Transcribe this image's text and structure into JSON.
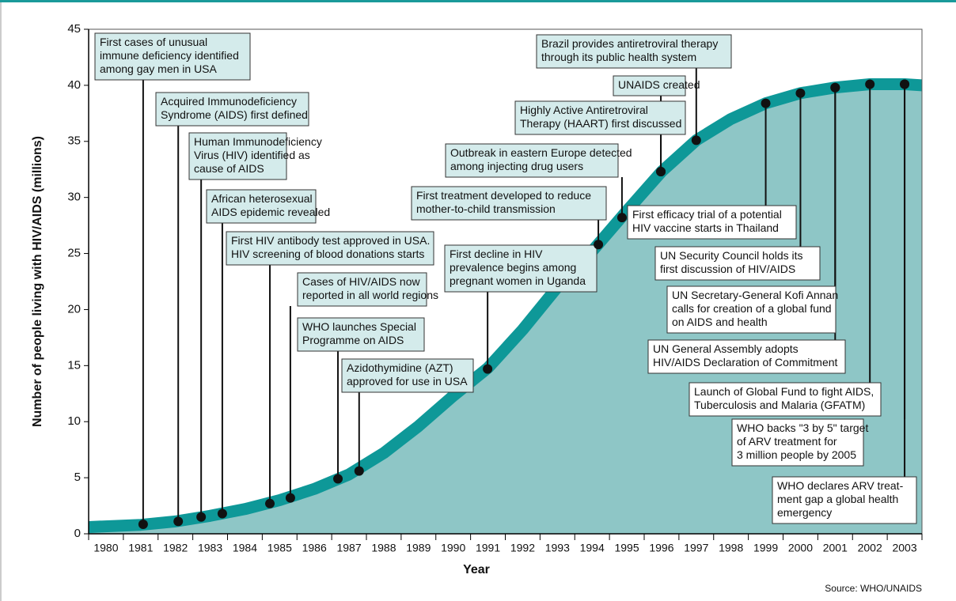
{
  "chart_data": {
    "type": "line",
    "y_label": "Number of people living with HIV/AIDS (millions)",
    "x_label": "Year",
    "source": "Source: WHO/UNAIDS",
    "color": "#0e9898",
    "fill_color": "#8ec6c6",
    "xlim": [
      1979.5,
      2003.5
    ],
    "xticks": [
      1980,
      1981,
      1982,
      1983,
      1984,
      1985,
      1986,
      1987,
      1988,
      1989,
      1990,
      1991,
      1992,
      1993,
      1994,
      1995,
      1996,
      1997,
      1998,
      1999,
      2000,
      2001,
      2002,
      2003
    ],
    "ylim": [
      0,
      45
    ],
    "yticks": [
      0,
      5,
      10,
      15,
      20,
      25,
      30,
      35,
      40,
      45
    ],
    "x": [
      1979.5,
      1981,
      1982,
      1983,
      1984,
      1985,
      1986,
      1987,
      1988,
      1989,
      1990,
      1991,
      1992,
      1993,
      1994,
      1995,
      1996,
      1997,
      1998,
      1999,
      2000,
      2001,
      2002,
      2003,
      2003.5
    ],
    "values": [
      0.6,
      0.8,
      1.1,
      1.6,
      2.2,
      3.0,
      4.0,
      5.3,
      7.2,
      9.6,
      12.3,
      14.8,
      18.2,
      22.0,
      25.2,
      28.8,
      32.3,
      35.1,
      37.0,
      38.4,
      39.3,
      39.8,
      40.1,
      40.1,
      40.0
    ],
    "annotations": [
      {
        "lines": [
          "First cases of unusual",
          "immune deficiency identified",
          "among gay men in USA"
        ],
        "x": 1981.07,
        "y": 0.85
      },
      {
        "lines": [
          "Acquired Immunodeficiency",
          "Syndrome (AIDS) first defined"
        ],
        "x": 1982.08,
        "y": 1.1
      },
      {
        "lines": [
          "Human Immunodeficiency",
          "Virus (HIV) identified as",
          "cause of AIDS"
        ],
        "x": 1982.74,
        "y": 1.5
      },
      {
        "lines": [
          "African heterosexual",
          "AIDS epidemic revealed"
        ],
        "x": 1983.35,
        "y": 1.8
      },
      {
        "lines": [
          "First HIV antibody test approved in USA.",
          "HIV screening of blood donations starts"
        ],
        "x": 1984.72,
        "y": 2.7
      },
      {
        "lines": [
          "Cases of HIV/AIDS now",
          "reported in all world regions"
        ],
        "x": 1985.31,
        "y": 3.2
      },
      {
        "lines": [
          "WHO launches Special",
          "Programme on AIDS"
        ],
        "x": 1986.68,
        "y": 4.9
      },
      {
        "lines": [
          "Azidothymidine (AZT)",
          "approved for use in USA"
        ],
        "x": 1987.29,
        "y": 5.6
      },
      {
        "lines": [
          "First decline in HIV",
          "prevalence begins among",
          "pregnant women in Uganda"
        ],
        "x": 1990.99,
        "y": 14.7
      },
      {
        "lines": [
          "First treatment developed to reduce",
          "mother-to-child transmission"
        ],
        "x": 1994.18,
        "y": 25.8
      },
      {
        "lines": [
          "Outbreak in eastern Europe detected",
          "among injecting drug users"
        ],
        "x": 1994.86,
        "y": 28.2
      },
      {
        "lines": [
          "Highly Active Antiretroviral",
          "Therapy (HAART) first discussed"
        ],
        "x": 1995.98,
        "y": 32.3
      },
      {
        "lines": [
          "UNAIDS created"
        ],
        "x": 1995.98,
        "y": 32.3
      },
      {
        "lines": [
          "Brazil provides antiretroviral therapy",
          "through its public health system"
        ],
        "x": 1997.0,
        "y": 35.1
      },
      {
        "lines": [
          "First efficacy trial of a potential",
          "HIV vaccine  starts in Thailand"
        ],
        "x": 1999.0,
        "y": 38.4
      },
      {
        "lines": [
          "UN Security Council holds its",
          "first discussion of HIV/AIDS"
        ],
        "x": 2000.0,
        "y": 39.3
      },
      {
        "lines": [
          "UN Secretary-General Kofi Annan",
          "calls for creation of a global fund",
          "on AIDS and health"
        ],
        "x": 2001.0,
        "y": 39.8
      },
      {
        "lines": [
          "UN General Assembly adopts",
          "HIV/AIDS Declaration of Commitment"
        ],
        "x": 2001.0,
        "y": 39.8
      },
      {
        "lines": [
          "Launch of Global Fund to fight AIDS,",
          "Tuberculosis and Malaria (GFATM)"
        ],
        "x": 2002.0,
        "y": 40.1
      },
      {
        "lines": [
          "WHO backs \"3 by 5\" target",
          "of ARV treatment for",
          "3 million people by 2005"
        ],
        "x": 2003.0,
        "y": 40.1
      },
      {
        "lines": [
          "WHO declares ARV treat-",
          "ment gap a global health",
          "emergency"
        ],
        "x": 2003.0,
        "y": 40.1
      }
    ]
  }
}
